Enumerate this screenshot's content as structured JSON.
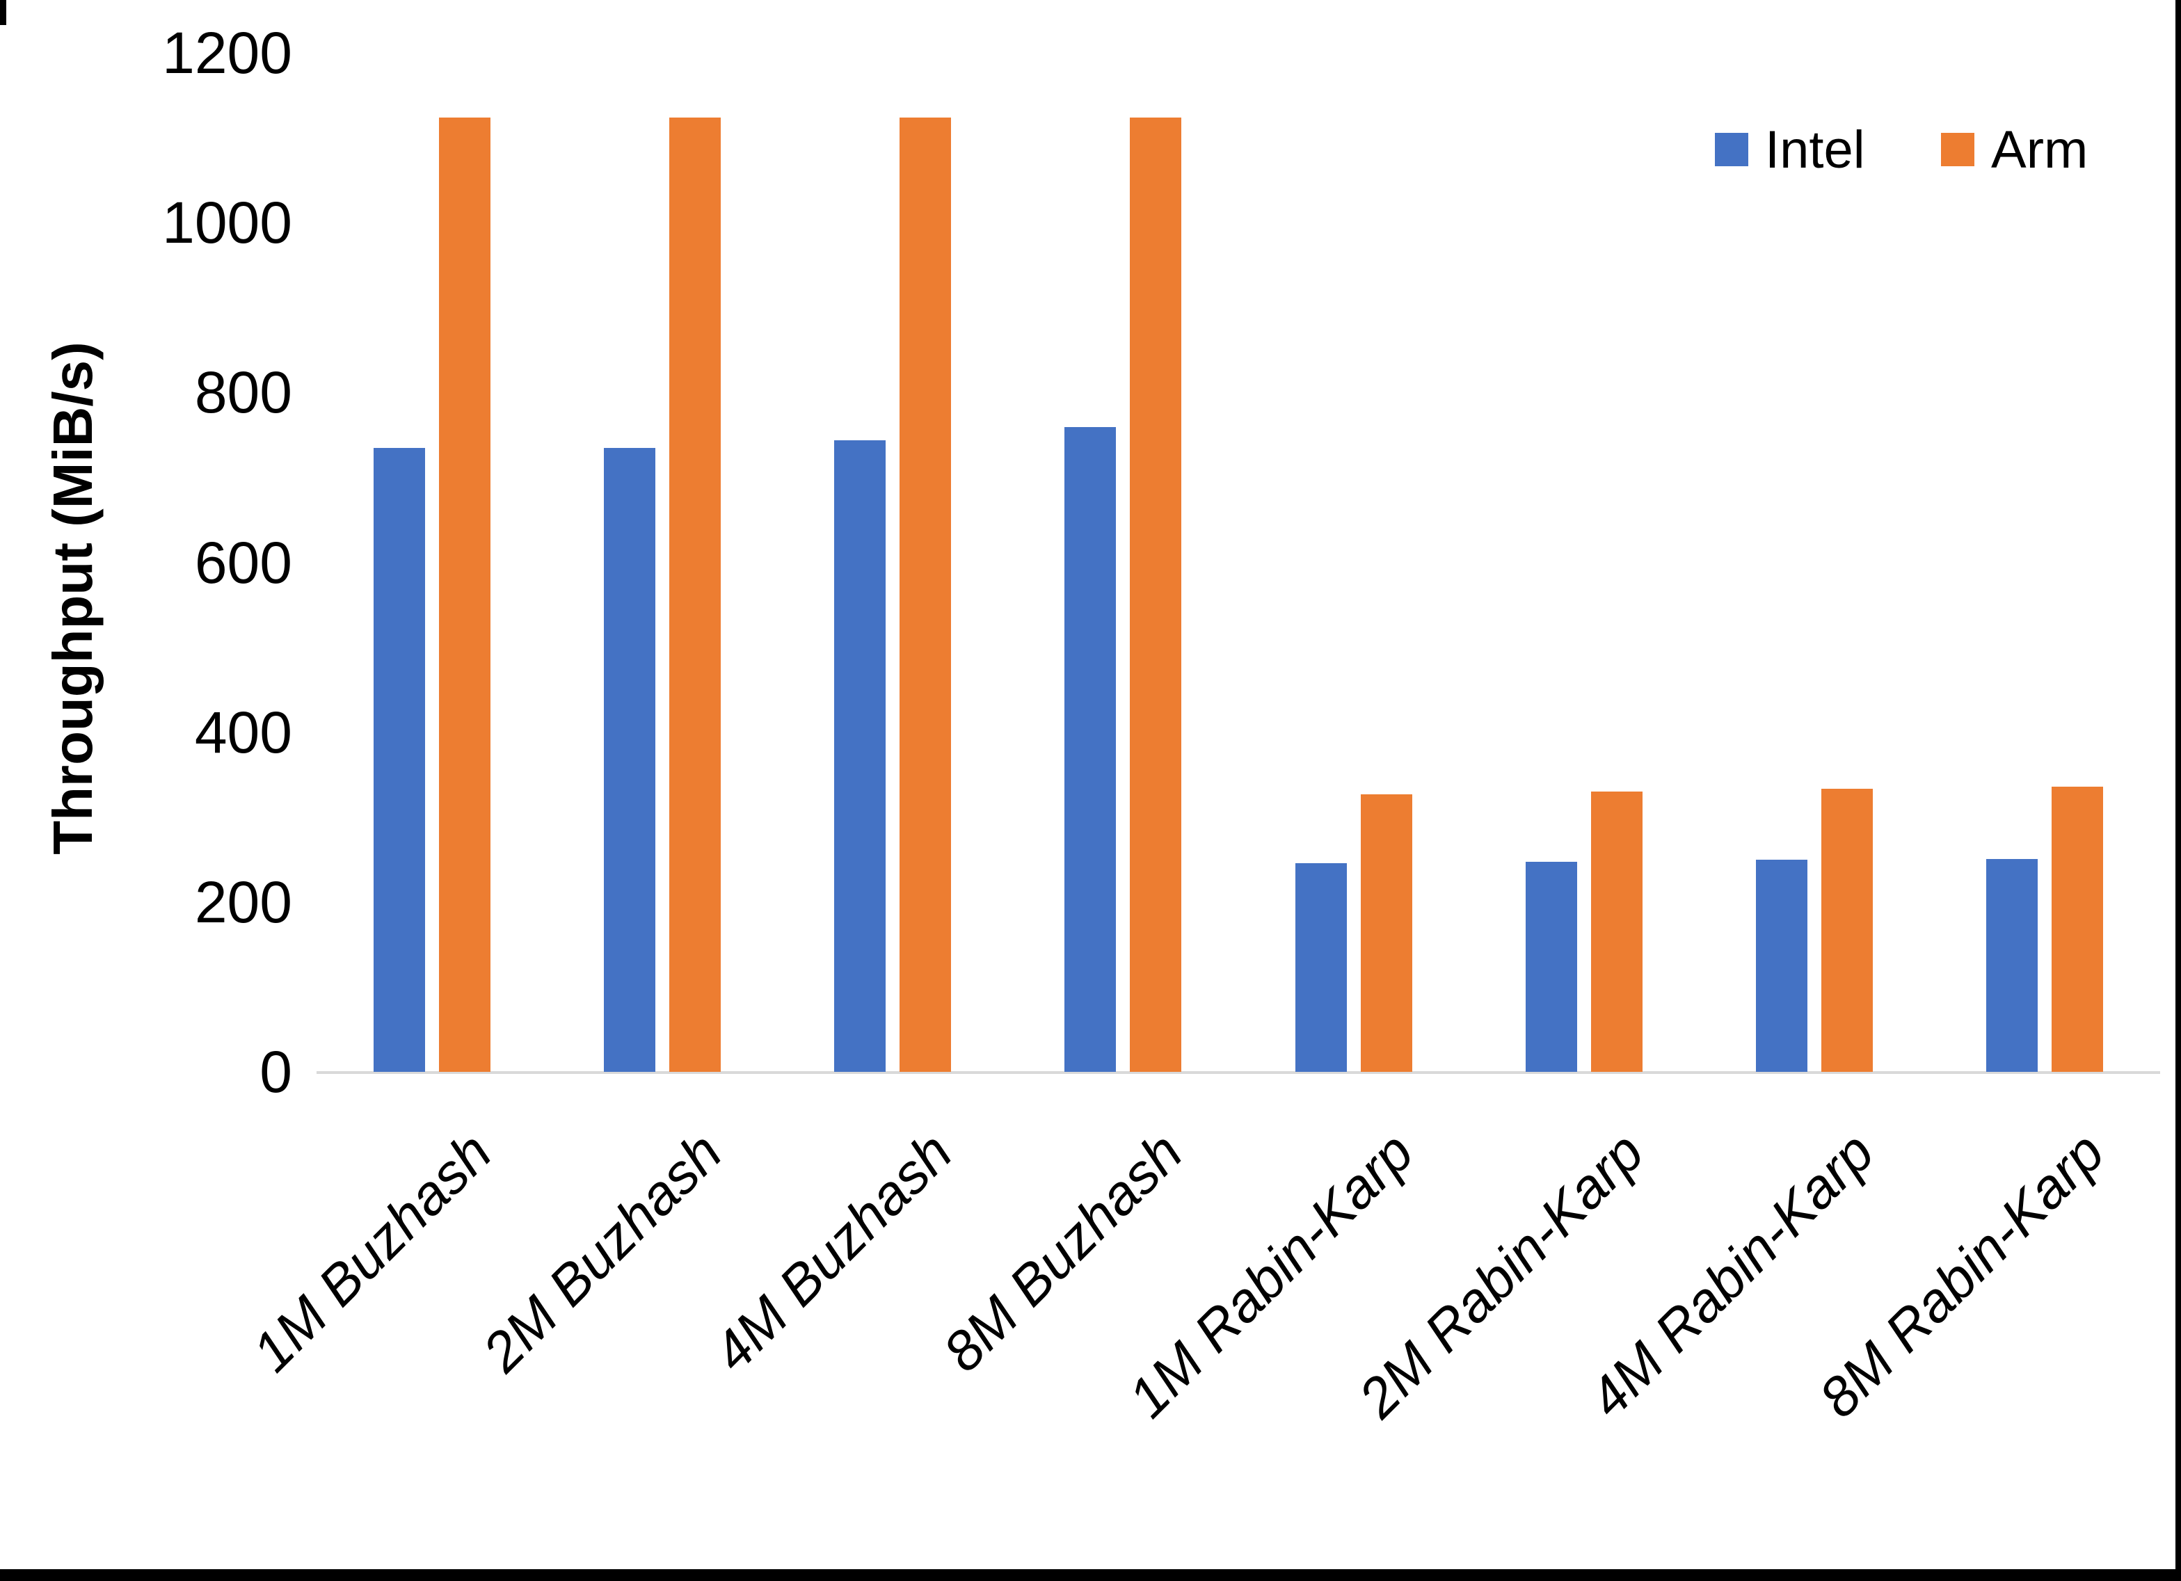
{
  "chart_data": {
    "type": "bar",
    "title": "",
    "categories": [
      "1M Buzhash",
      "2M Buzhash",
      "4M Buzhash",
      "8M Buzhash",
      "1M Rabin-Karp",
      "2M Rabin-Karp",
      "4M Rabin-Karp",
      "8M Rabin-Karp"
    ],
    "series": [
      {
        "name": "Intel",
        "color": "#4472C4",
        "values": [
          735,
          735,
          744,
          759,
          246,
          247,
          250,
          251
        ]
      },
      {
        "name": "Arm",
        "color": "#ED7D31",
        "values": [
          1124,
          1124,
          1124,
          1124,
          327,
          330,
          333,
          336
        ]
      }
    ],
    "xlabel": "",
    "ylabel": "Throughput (MiB/s)",
    "ylim": [
      0,
      1200
    ],
    "yticks": [
      0,
      200,
      400,
      600,
      800,
      1000,
      1200
    ],
    "grid": false,
    "legend_position": "top-right",
    "axis_line_color": "#D9D9D9",
    "text_color": "#000000",
    "background_color": "#FFFFFF"
  }
}
